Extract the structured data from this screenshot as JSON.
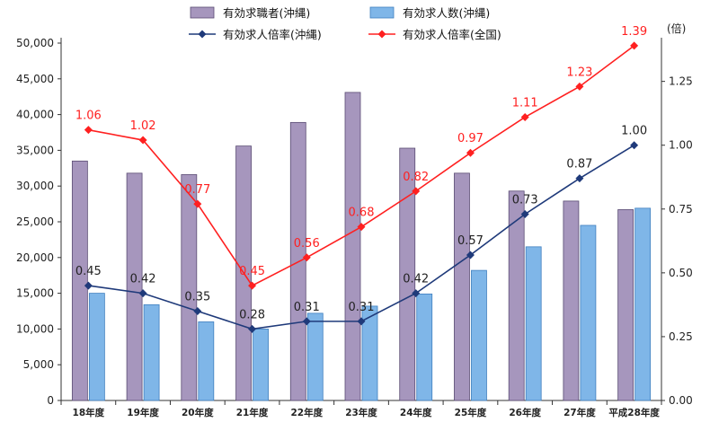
{
  "chart_data": {
    "type": "bar",
    "categories": [
      "18年度",
      "19年度",
      "20年度",
      "21年度",
      "22年度",
      "23年度",
      "24年度",
      "25年度",
      "26年度",
      "27年度",
      "平成28年度"
    ],
    "series": [
      {
        "name": "有効求職者(沖縄)",
        "type": "bar",
        "axis": "left",
        "color": "#a696bd",
        "values": [
          33500,
          31800,
          31600,
          35600,
          38900,
          43100,
          35300,
          31800,
          29300,
          27900,
          26700
        ]
      },
      {
        "name": "有効求人数(沖縄)",
        "type": "bar",
        "axis": "left",
        "color": "#7fb6e8",
        "values": [
          15000,
          13400,
          11000,
          10000,
          12200,
          13200,
          14900,
          18200,
          21500,
          24500,
          26900
        ]
      },
      {
        "name": "有効求人倍率(沖縄)",
        "type": "line",
        "axis": "right",
        "color": "#1f3a7a",
        "values": [
          0.45,
          0.42,
          0.35,
          0.28,
          0.31,
          0.31,
          0.42,
          0.57,
          0.73,
          0.87,
          1.0
        ],
        "labels": [
          "0.45",
          "0.42",
          "0.35",
          "0.28",
          "0.31",
          "0.31",
          "0.42",
          "0.57",
          "0.73",
          "0.87",
          "1.00"
        ]
      },
      {
        "name": "有効求人倍率(全国)",
        "type": "line",
        "axis": "right",
        "color": "#ff2020",
        "values": [
          1.06,
          1.02,
          0.77,
          0.45,
          0.56,
          0.68,
          0.82,
          0.97,
          1.11,
          1.23,
          1.39
        ],
        "labels": [
          "1.06",
          "1.02",
          "0.77",
          "0.45",
          "0.56",
          "0.68",
          "0.82",
          "0.97",
          "1.11",
          "1.23",
          "1.39"
        ]
      }
    ],
    "y_left": {
      "min": 0,
      "max": 50000,
      "ticks": [
        "0",
        "5,000",
        "10,000",
        "15,000",
        "20,000",
        "25,000",
        "30,000",
        "35,000",
        "40,000",
        "45,000",
        "50,000"
      ]
    },
    "y_right": {
      "min": 0,
      "max": 1.4,
      "unit": "(倍)",
      "ticks": [
        "0.00",
        "0.25",
        "0.50",
        "0.75",
        "1.00",
        "1.25"
      ]
    },
    "legend_position": "top",
    "grid": false
  }
}
